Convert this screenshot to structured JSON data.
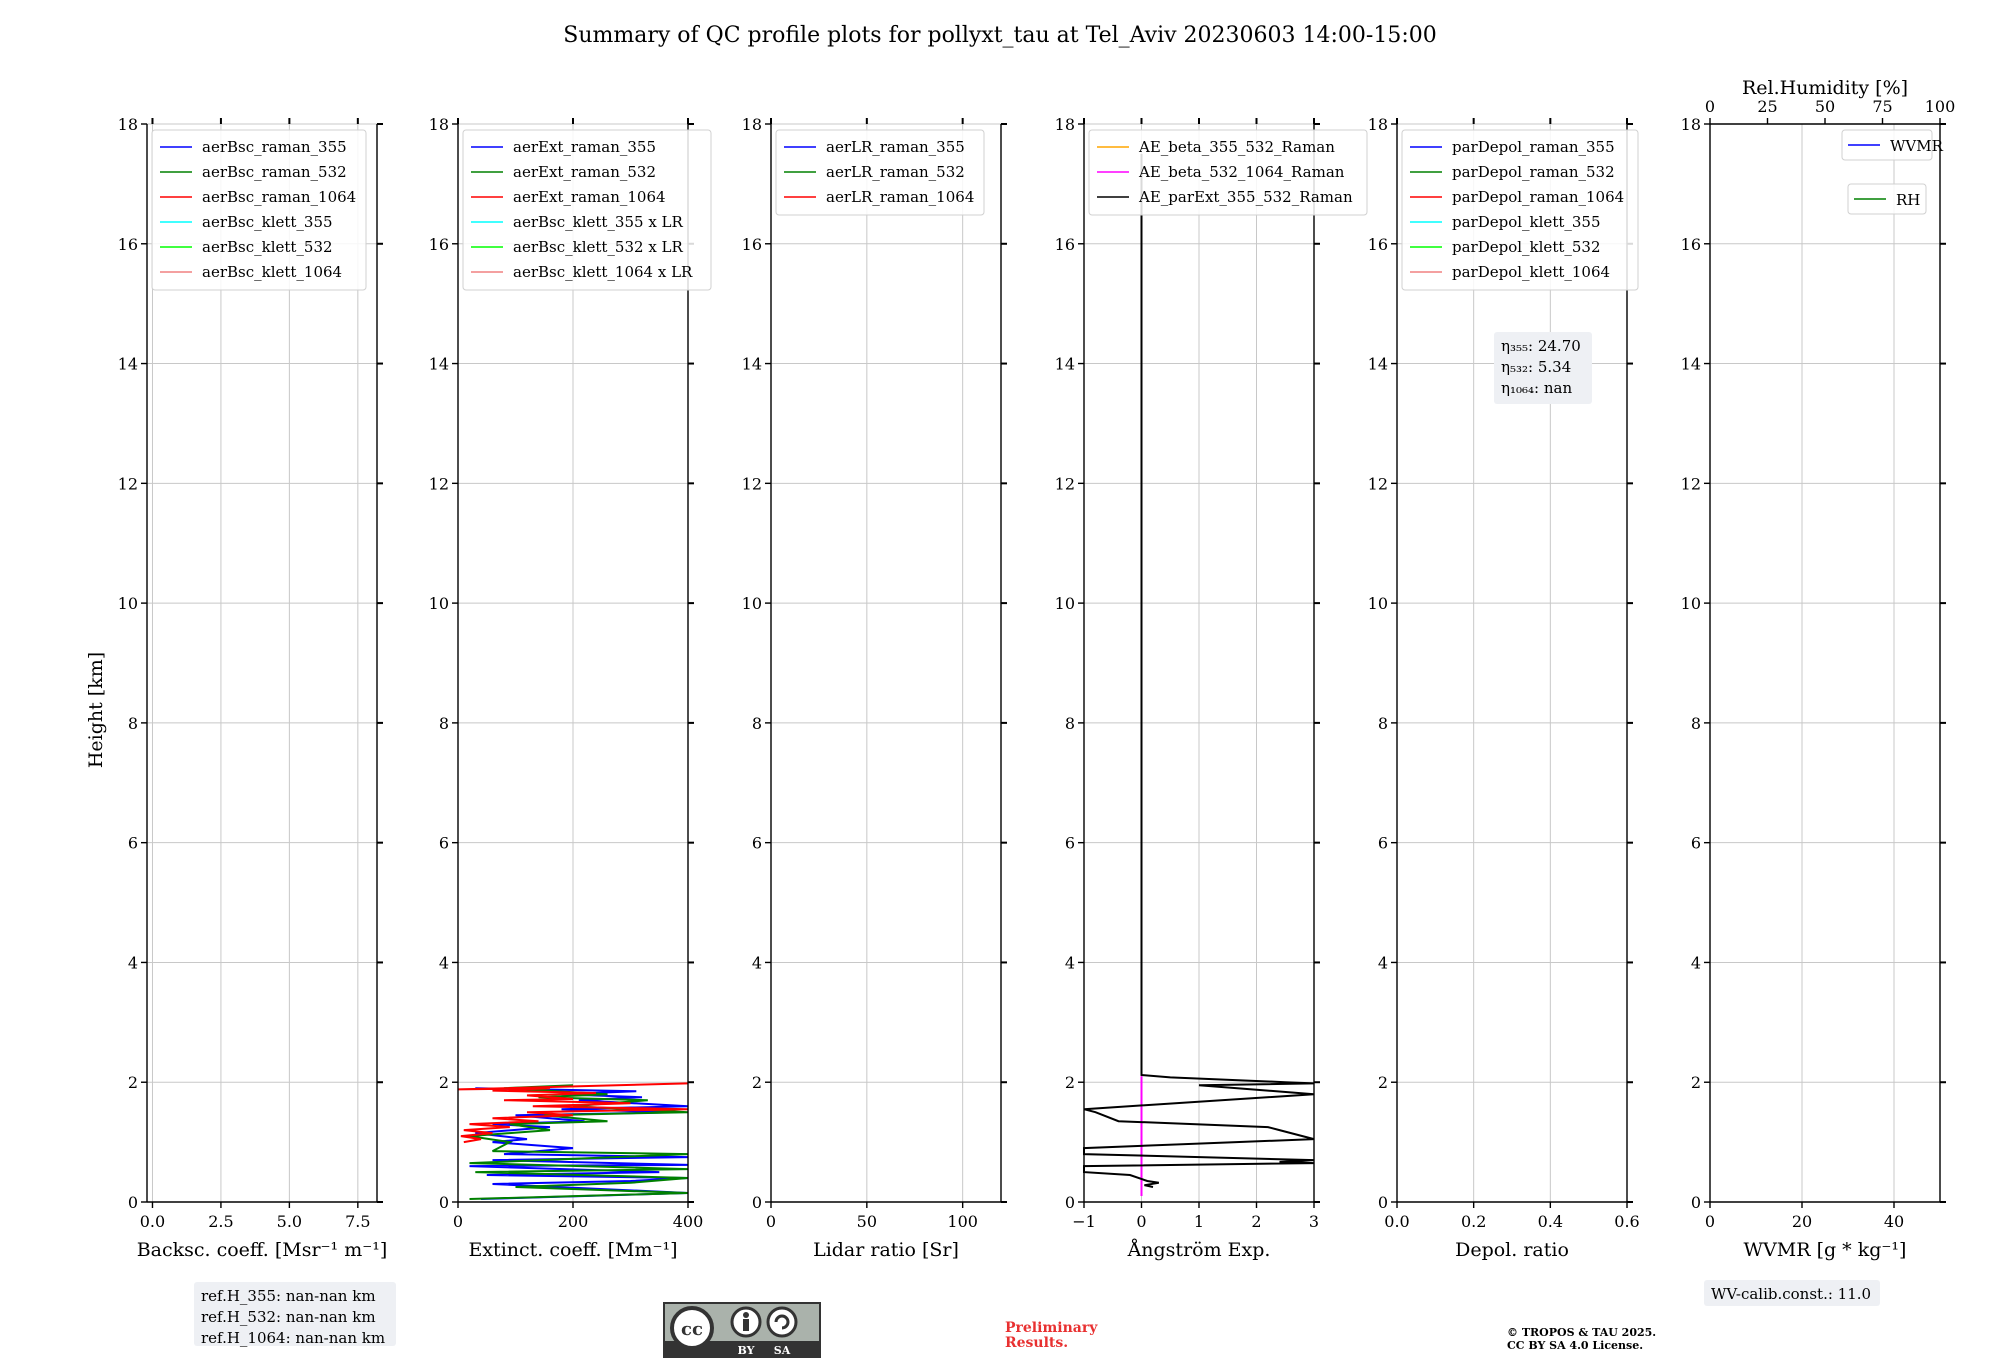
{
  "title": "Summary of QC profile plots for pollyxt_tau at Tel_Aviv 20230603 14:00-15:00",
  "y_label": "Height [km]",
  "y_ticks": [
    "0",
    "2",
    "4",
    "6",
    "8",
    "10",
    "12",
    "14",
    "16",
    "18"
  ],
  "chart_data": [
    {
      "type": "line",
      "xlabel": "Backsc. coeff. [Msr⁻¹ m⁻¹]",
      "xlim": [
        -0.2,
        8.2
      ],
      "x_ticks": [
        "0.0",
        "2.5",
        "5.0",
        "7.5"
      ],
      "ylabel": "Height [km]",
      "ylim": [
        0,
        18
      ],
      "grid": true,
      "legend": {
        "position": "top-left",
        "entries": [
          {
            "name": "aerBsc_raman_355",
            "color": "#0000ff"
          },
          {
            "name": "aerBsc_raman_532",
            "color": "#008000"
          },
          {
            "name": "aerBsc_raman_1064",
            "color": "#ff0000"
          },
          {
            "name": "aerBsc_klett_355",
            "color": "#00ffff"
          },
          {
            "name": "aerBsc_klett_532",
            "color": "#00ff00"
          },
          {
            "name": "aerBsc_klett_1064",
            "color": "#f08080"
          }
        ]
      },
      "series": [],
      "annotation": [
        "ref.H_355: nan-nan km",
        "ref.H_532: nan-nan km",
        "ref.H_1064: nan-nan km"
      ]
    },
    {
      "type": "line",
      "xlabel": "Extinct. coeff. [Mm⁻¹]",
      "xlim": [
        0,
        400
      ],
      "x_ticks": [
        "0",
        "200",
        "400"
      ],
      "ylim": [
        0,
        18
      ],
      "grid": true,
      "legend": {
        "position": "top-left",
        "entries": [
          {
            "name": "aerExt_raman_355",
            "color": "#0000ff"
          },
          {
            "name": "aerExt_raman_532",
            "color": "#008000"
          },
          {
            "name": "aerExt_raman_1064",
            "color": "#ff0000"
          },
          {
            "name": "aerBsc_klett_355 x LR",
            "color": "#00ffff"
          },
          {
            "name": "aerBsc_klett_532 x LR",
            "color": "#00ff00"
          },
          {
            "name": "aerBsc_klett_1064 x LR",
            "color": "#f08080"
          }
        ]
      },
      "series": [
        {
          "name": "aerExt_raman_355",
          "color": "#0000ff",
          "points": [
            [
              40,
              0.05
            ],
            [
              400,
              0.15
            ],
            [
              60,
              0.3
            ],
            [
              300,
              0.35
            ],
            [
              400,
              0.4
            ],
            [
              50,
              0.45
            ],
            [
              350,
              0.5
            ],
            [
              20,
              0.6
            ],
            [
              400,
              0.62
            ],
            [
              60,
              0.7
            ],
            [
              400,
              0.75
            ],
            [
              80,
              0.8
            ],
            [
              200,
              0.9
            ],
            [
              60,
              1.0
            ],
            [
              120,
              1.05
            ],
            [
              30,
              1.15
            ],
            [
              160,
              1.25
            ],
            [
              60,
              1.3
            ],
            [
              220,
              1.35
            ],
            [
              100,
              1.45
            ],
            [
              380,
              1.5
            ],
            [
              180,
              1.55
            ],
            [
              400,
              1.6
            ],
            [
              210,
              1.7
            ],
            [
              320,
              1.75
            ],
            [
              180,
              1.8
            ],
            [
              310,
              1.85
            ],
            [
              30,
              1.9
            ]
          ]
        },
        {
          "name": "aerExt_raman_532",
          "color": "#008000",
          "points": [
            [
              20,
              0.05
            ],
            [
              400,
              0.15
            ],
            [
              100,
              0.25
            ],
            [
              300,
              0.32
            ],
            [
              400,
              0.4
            ],
            [
              30,
              0.5
            ],
            [
              400,
              0.55
            ],
            [
              20,
              0.65
            ],
            [
              400,
              0.8
            ],
            [
              60,
              0.85
            ],
            [
              90,
              1.0
            ],
            [
              20,
              1.1
            ],
            [
              160,
              1.2
            ],
            [
              90,
              1.3
            ],
            [
              260,
              1.35
            ],
            [
              150,
              1.45
            ],
            [
              400,
              1.5
            ],
            [
              200,
              1.6
            ],
            [
              330,
              1.7
            ],
            [
              140,
              1.75
            ],
            [
              260,
              1.8
            ],
            [
              80,
              1.9
            ],
            [
              200,
              1.95
            ]
          ]
        },
        {
          "name": "aerExt_raman_1064",
          "color": "#ff0000",
          "points": [
            [
              10,
              1.0
            ],
            [
              40,
              1.05
            ],
            [
              5,
              1.1
            ],
            [
              60,
              1.15
            ],
            [
              10,
              1.2
            ],
            [
              90,
              1.25
            ],
            [
              20,
              1.3
            ],
            [
              140,
              1.35
            ],
            [
              60,
              1.4
            ],
            [
              200,
              1.45
            ],
            [
              120,
              1.5
            ],
            [
              400,
              1.55
            ],
            [
              130,
              1.6
            ],
            [
              300,
              1.65
            ],
            [
              80,
              1.7
            ],
            [
              200,
              1.72
            ],
            [
              120,
              1.78
            ],
            [
              240,
              1.82
            ],
            [
              60,
              1.86
            ],
            [
              160,
              1.9
            ],
            [
              0,
              1.88
            ],
            [
              400,
              1.98
            ]
          ]
        }
      ]
    },
    {
      "type": "line",
      "xlabel": "Lidar ratio [Sr]",
      "xlim": [
        0,
        120
      ],
      "x_ticks": [
        "0",
        "50",
        "100"
      ],
      "ylim": [
        0,
        18
      ],
      "grid": true,
      "legend": {
        "position": "top-left",
        "entries": [
          {
            "name": "aerLR_raman_355",
            "color": "#0000ff"
          },
          {
            "name": "aerLR_raman_532",
            "color": "#008000"
          },
          {
            "name": "aerLR_raman_1064",
            "color": "#ff0000"
          }
        ]
      },
      "series": []
    },
    {
      "type": "line",
      "xlabel": "Ångström Exp.",
      "xlim": [
        -1,
        3
      ],
      "x_ticks": [
        "−1",
        "0",
        "1",
        "2",
        "3"
      ],
      "ylim": [
        0,
        18
      ],
      "grid": true,
      "legend": {
        "position": "top-left",
        "entries": [
          {
            "name": "AE_beta_355_532_Raman",
            "color": "#ffa500"
          },
          {
            "name": "AE_beta_532_1064_Raman",
            "color": "#ff00ff"
          },
          {
            "name": "AE_parExt_355_532_Raman",
            "color": "#000000"
          }
        ]
      },
      "series": [
        {
          "name": "AE_beta_532_1064_Raman",
          "color": "#ff00ff",
          "points": [
            [
              0,
              0.1
            ],
            [
              0,
              2.1
            ]
          ]
        },
        {
          "name": "AE_parExt_355_532_Raman",
          "color": "#000000",
          "points": [
            [
              0.2,
              0.25
            ],
            [
              0.05,
              0.28
            ],
            [
              0.3,
              0.32
            ],
            [
              0.1,
              0.35
            ],
            [
              -0.2,
              0.45
            ],
            [
              -1,
              0.5
            ],
            [
              -1,
              0.6
            ],
            [
              3,
              0.65
            ],
            [
              2.4,
              0.67
            ],
            [
              3,
              0.7
            ],
            [
              -1,
              0.8
            ],
            [
              -1,
              0.9
            ],
            [
              3,
              1.05
            ],
            [
              2.4,
              1.2
            ],
            [
              2.2,
              1.25
            ],
            [
              -0.4,
              1.35
            ],
            [
              -0.8,
              1.5
            ],
            [
              -1,
              1.55
            ],
            [
              3,
              1.8
            ],
            [
              1,
              1.95
            ],
            [
              3,
              1.98
            ],
            [
              2.5,
              2.0
            ],
            [
              0.5,
              2.08
            ],
            [
              0,
              2.12
            ],
            [
              0,
              17.5
            ]
          ]
        }
      ]
    },
    {
      "type": "line",
      "xlabel": "Depol. ratio",
      "xlim": [
        0,
        0.6
      ],
      "x_ticks": [
        "0.0",
        "0.2",
        "0.4",
        "0.6"
      ],
      "ylim": [
        0,
        18
      ],
      "grid": true,
      "legend": {
        "position": "top-left",
        "entries": [
          {
            "name": "parDepol_raman_355",
            "color": "#0000ff"
          },
          {
            "name": "parDepol_raman_532",
            "color": "#008000"
          },
          {
            "name": "parDepol_raman_1064",
            "color": "#ff0000"
          },
          {
            "name": "parDepol_klett_355",
            "color": "#00ffff"
          },
          {
            "name": "parDepol_klett_532",
            "color": "#00ff00"
          },
          {
            "name": "parDepol_klett_1064",
            "color": "#f08080"
          }
        ]
      },
      "series": [],
      "annotation": [
        "η₃₅₅: 24.70",
        "η₅₃₂: 5.34",
        "η₁₀₆₄: nan"
      ]
    },
    {
      "type": "line",
      "xlabel": "WVMR [g * kg⁻¹]",
      "xlim": [
        0,
        50
      ],
      "x_ticks": [
        "0",
        "20",
        "40"
      ],
      "x2label": "Rel.Humidity [%]",
      "x2lim": [
        0,
        100
      ],
      "x2_ticks": [
        "0",
        "25",
        "50",
        "75",
        "100"
      ],
      "ylim": [
        0,
        18
      ],
      "grid": true,
      "legend": {
        "position": "top-right",
        "entries": [
          {
            "name": "WVMR",
            "color": "#0000ff"
          },
          {
            "name": "RH",
            "color": "#008000"
          }
        ]
      },
      "series": [],
      "annotation": [
        "WV-calib.const.: 11.0"
      ]
    }
  ],
  "footer": {
    "license_badge": {
      "cc": "cc",
      "by": "BY",
      "sa": "SA"
    },
    "preliminary": [
      "Preliminary",
      "Results."
    ],
    "copyright": [
      "© TROPOS & TAU 2025.",
      "CC BY SA 4.0 License."
    ],
    "colors": {
      "preliminary": "#e83030",
      "badge_dark": "#333333",
      "badge_light": "#aab2ab"
    }
  }
}
